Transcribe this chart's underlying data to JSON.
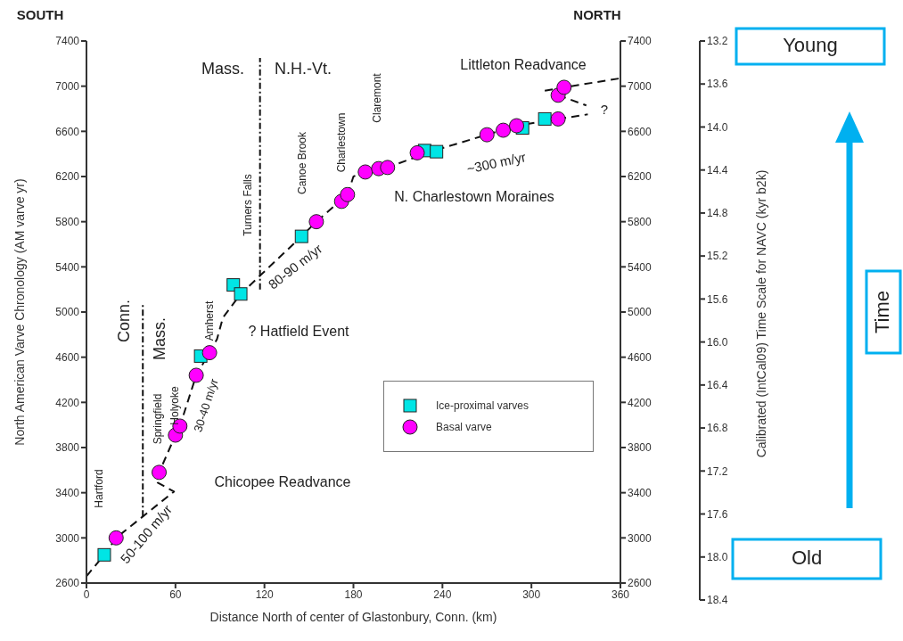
{
  "chart_data": {
    "type": "scatter",
    "xlabel": "Distance North of center of Glastonbury, Conn. (km)",
    "ylabel": "North American Varve Chronology (AM varve yr)",
    "y3label": "Calibrated (IntCal09) Time Scale for NAVC (kyr b2k)",
    "xlim": [
      0,
      360
    ],
    "xticks": [
      0,
      60,
      120,
      180,
      240,
      300,
      360
    ],
    "ylim": [
      2600,
      7400
    ],
    "yticks": [
      2600,
      3000,
      3400,
      3800,
      4200,
      4600,
      5000,
      5400,
      5800,
      6200,
      6600,
      7000,
      7400
    ],
    "y2lim": [
      2600,
      7400
    ],
    "y2ticks": [
      2600,
      3000,
      3400,
      3800,
      4200,
      4600,
      5000,
      5400,
      5800,
      6200,
      6600,
      7000,
      7400
    ],
    "y3lim": [
      18.4,
      13.2
    ],
    "y3ticks": [
      {
        "value": 13.2,
        "label": "13.2"
      },
      {
        "value": 13.6,
        "label": "13.6"
      },
      {
        "value": 14.0,
        "label": "14.0"
      },
      {
        "value": 14.4,
        "label": "14.4"
      },
      {
        "value": 14.8,
        "label": "14.8"
      },
      {
        "value": 15.2,
        "label": "15.2"
      },
      {
        "value": 15.6,
        "label": "15.6"
      },
      {
        "value": 16.0,
        "label": "16.0"
      },
      {
        "value": 16.4,
        "label": "16.4"
      },
      {
        "value": 16.8,
        "label": "16.8"
      },
      {
        "value": 17.2,
        "label": "17.2"
      },
      {
        "value": 17.6,
        "label": "17.6"
      },
      {
        "value": 18.0,
        "label": "18.0"
      },
      {
        "value": 18.4,
        "label": "18.4"
      }
    ],
    "legend": "right",
    "series": [
      {
        "name": "Ice-proximal varves",
        "marker": "square",
        "color": "#00e5e5",
        "x": [
          12,
          77,
          99,
          104,
          145,
          195,
          228,
          236,
          294,
          309
        ],
        "values": [
          2850,
          4610,
          5240,
          5160,
          5670,
          null,
          6430,
          6420,
          6630,
          6710
        ]
      },
      {
        "name": "Basal varve",
        "marker": "circle",
        "color": "#ff00ff",
        "x": [
          20,
          49,
          60,
          63,
          74,
          83,
          155,
          172,
          176,
          188,
          197,
          203,
          223,
          270,
          281,
          290,
          318,
          318,
          322
        ],
        "values": [
          3000,
          3580,
          3910,
          3990,
          4440,
          4640,
          5800,
          5980,
          6040,
          6240,
          6270,
          6280,
          6410,
          6570,
          6610,
          6650,
          6710,
          6920,
          6990
        ]
      },
      {
        "type": "line",
        "line_style": "dashed",
        "marker": "none",
        "color": "#111111",
        "x": [
          0,
          12,
          20,
          59,
          48,
          49,
          60,
          63,
          74,
          83,
          88,
          92,
          104,
          145,
          155,
          176,
          180,
          187,
          203,
          232,
          290,
          318
        ],
        "values": [
          2660,
          2850,
          3000,
          3410,
          3490,
          3580,
          3910,
          3990,
          4440,
          4640,
          4760,
          4950,
          5160,
          5670,
          5800,
          6040,
          6200,
          6240,
          6280,
          6420,
          6650,
          6710
        ]
      },
      {
        "type": "line",
        "line_style": "dashed",
        "marker": "none",
        "color": "#111111",
        "x": [
          309,
          322,
          360
        ],
        "values": [
          6960,
          6990,
          7070
        ]
      },
      {
        "type": "line",
        "line_style": "dashed",
        "marker": "none",
        "color": "#111111",
        "x": [
          318,
          338
        ],
        "values": [
          6710,
          6750
        ]
      },
      {
        "type": "line",
        "line_style": "dashed",
        "marker": "none",
        "color": "#111111",
        "x": [
          318,
          337
        ],
        "values": [
          6920,
          6830
        ]
      },
      {
        "type": "line",
        "line_style": "dotted",
        "marker": "none",
        "color": "#111111",
        "x": [
          38,
          38
        ],
        "values": [
          3190,
          5080
        ]
      },
      {
        "type": "line",
        "line_style": "dotted",
        "marker": "none",
        "color": "#111111",
        "x": [
          117,
          117
        ],
        "values": [
          5200,
          7250
        ]
      }
    ],
    "annotations": [
      "SOUTH",
      "NORTH",
      "Mass.",
      "N.H.-Vt.",
      "Conn.",
      "Mass.",
      "Hartford",
      "Springfield",
      "Holyoke",
      "Amherst",
      "Turners Falls",
      "Canoe Brook",
      "Charlestown",
      "Claremont",
      "Littleton Readvance",
      "N. Charlestown Moraines",
      "? Hatfield Event",
      "80-90 m/yr",
      "30-40 m/yr",
      "50-100 m/yr",
      "~300 m/yr",
      "Chicopee Readvance",
      "?",
      "Young",
      "Time",
      "Old"
    ]
  }
}
